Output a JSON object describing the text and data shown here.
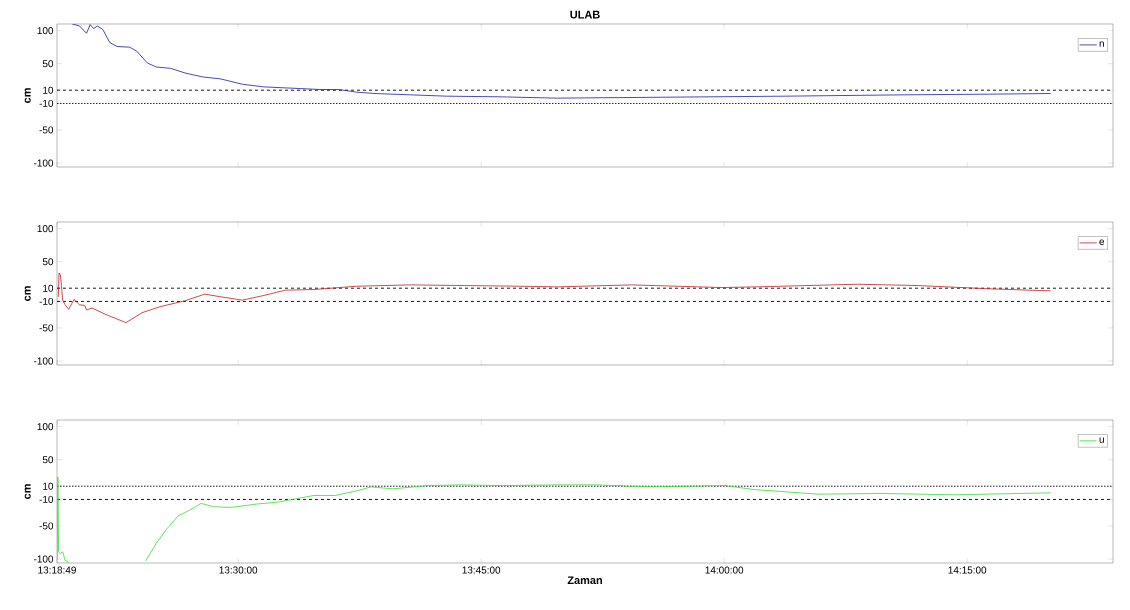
{
  "chart_data": [
    {
      "type": "line",
      "title": "ULAB",
      "ylabel": "cm",
      "tick_labels": "y",
      "legend": "top right",
      "line_style": "solid",
      "xlim": [
        13.3136,
        14.4
      ],
      "xticks": [
        {
          "value": 13.3136,
          "label": null
        },
        {
          "value": 13.5,
          "label": null
        },
        {
          "value": 13.75,
          "label": null
        },
        {
          "value": 14,
          "label": null
        },
        {
          "value": 14.25,
          "label": null
        }
      ],
      "ylim": [
        -106,
        110
      ],
      "yticks": [
        -100,
        -50,
        -10,
        10,
        50,
        100
      ],
      "ref_lines": [
        {
          "axis": "y",
          "value": 10,
          "line_style": "dashed"
        },
        {
          "axis": "y",
          "value": -10,
          "line_style": "dotted"
        }
      ],
      "x": [
        13.3293,
        13.3367,
        13.344,
        13.3477,
        13.3513,
        13.3551,
        13.3606,
        13.3679,
        13.3754,
        13.3883,
        13.3956,
        13.4066,
        13.4158,
        13.4305,
        13.4453,
        13.4637,
        13.4821,
        13.5043,
        13.5264,
        13.5558,
        13.5852,
        13.6037,
        13.622,
        13.6405,
        13.6773,
        13.7141,
        13.7694,
        13.8283,
        14.0633,
        14.1849,
        14.2733,
        14.3359
      ],
      "series": [
        {
          "name": "n",
          "color": "#1c1caa",
          "values": [
            110,
            107,
            96,
            109,
            103,
            107,
            102,
            82,
            76,
            75,
            69,
            51,
            45,
            43,
            36,
            30,
            27,
            19,
            15,
            13,
            11,
            11,
            7,
            5,
            3,
            1,
            0,
            -2,
            1,
            3,
            4,
            5
          ]
        }
      ]
    },
    {
      "type": "line",
      "ylabel": "cm",
      "tick_labels": "y",
      "legend": "top right",
      "line_style": "solid",
      "xlim": [
        13.3136,
        14.4
      ],
      "xticks": [
        {
          "value": 13.3136,
          "label": null
        },
        {
          "value": 13.5,
          "label": null
        },
        {
          "value": 13.75,
          "label": null
        },
        {
          "value": 14,
          "label": null
        },
        {
          "value": 14.25,
          "label": null
        }
      ],
      "ylim": [
        -106,
        110
      ],
      "yticks": [
        -100,
        -50,
        -10,
        10,
        50,
        100
      ],
      "ref_lines": [
        {
          "axis": "y",
          "value": 10,
          "line_style": "dashed"
        },
        {
          "axis": "y",
          "value": -10,
          "line_style": "dashed"
        }
      ],
      "x": [
        13.3149,
        13.3157,
        13.3171,
        13.3182,
        13.3194,
        13.3219,
        13.3256,
        13.3311,
        13.3367,
        13.3422,
        13.344,
        13.3496,
        13.3642,
        13.3846,
        13.4011,
        13.4195,
        13.4453,
        13.4656,
        13.4821,
        13.5043,
        13.5264,
        13.5484,
        13.5779,
        13.622,
        13.6773,
        13.7326,
        13.7879,
        13.8283,
        13.9049,
        13.997,
        14.0338,
        14.1369,
        14.1996,
        14.2733,
        14.3359
      ],
      "series": [
        {
          "name": "e",
          "color": "#c41e1e",
          "values": [
            -3,
            33,
            30,
            14,
            -8,
            -15,
            -22,
            -7,
            -15,
            -16,
            -23,
            -20,
            -30,
            -42,
            -27,
            -18,
            -9,
            1,
            -3,
            -8,
            -1,
            7,
            8,
            13,
            15,
            14,
            13,
            12,
            15,
            11,
            12,
            16,
            14,
            9,
            6
          ]
        }
      ]
    },
    {
      "type": "line",
      "ylabel": "cm",
      "xlabel": "Zaman",
      "legend": "top right",
      "line_style": "solid",
      "xlim": [
        13.3136,
        14.4
      ],
      "xticks": [
        {
          "value": 13.3136,
          "label": "13:18:49"
        },
        {
          "value": 13.5,
          "label": "13:30:00"
        },
        {
          "value": 13.75,
          "label": "13:45:00"
        },
        {
          "value": 14,
          "label": "14:00:00"
        },
        {
          "value": 14.25,
          "label": "14:15:00"
        }
      ],
      "ylim": [
        -106,
        110
      ],
      "yticks": [
        -100,
        -50,
        -10,
        10,
        50,
        100
      ],
      "ref_lines": [
        {
          "axis": "y",
          "value": 10,
          "line_style": "dotted"
        },
        {
          "axis": "y",
          "value": -10,
          "line_style": "dashed"
        }
      ],
      "x": [
        13.3138,
        13.3145,
        13.3152,
        13.3171,
        13.3194,
        13.3219,
        13.3256,
        13.3642,
        13.4048,
        13.4158,
        13.4269,
        13.438,
        13.449,
        13.4619,
        13.4748,
        13.4931,
        13.5189,
        13.5411,
        13.5669,
        13.5779,
        13.5999,
        13.622,
        13.6368,
        13.659,
        13.6958,
        13.7289,
        13.7694,
        13.8283,
        13.8681,
        13.9234,
        14.0008,
        14.0302,
        14.0964,
        14.1627,
        14.2365,
        14.3359
      ],
      "series": [
        {
          "name": "u",
          "color": "#33dd33",
          "values": [
            -100,
            24,
            -89,
            -92,
            -89,
            -102,
            -105,
            null,
            -103,
            -76,
            -54,
            -35,
            -27,
            -16,
            -21,
            -22,
            -17,
            -14,
            -7,
            -4,
            -4,
            3,
            9,
            6,
            11,
            12,
            11,
            12,
            12,
            9,
            11,
            5,
            -2,
            -1,
            -3,
            0
          ]
        }
      ]
    }
  ]
}
